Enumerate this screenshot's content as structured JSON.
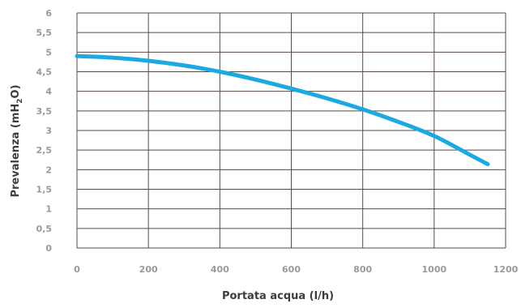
{
  "chart_data": {
    "type": "line",
    "title": "",
    "xlabel": "Portata acqua (l/h)",
    "ylabel": "Prevalenza (mH",
    "ylabel_sub": "2",
    "ylabel_end": "O)",
    "xlim": [
      0,
      1200
    ],
    "ylim": [
      0,
      6
    ],
    "x_ticks": [
      "0",
      "200",
      "400",
      "600",
      "800",
      "1000",
      "1200"
    ],
    "y_ticks": [
      "0",
      "0,5",
      "1",
      "1,5",
      "2",
      "2,5",
      "3",
      "3,5",
      "4",
      "4,5",
      "5",
      "5,5",
      "6"
    ],
    "grid": true,
    "series": [
      {
        "color": "#1ba9e1",
        "x": [
          0,
          100,
          200,
          300,
          400,
          500,
          600,
          700,
          800,
          900,
          1000,
          1100,
          1150
        ],
        "y": [
          4.9,
          4.86,
          4.78,
          4.66,
          4.5,
          4.3,
          4.07,
          3.82,
          3.54,
          3.22,
          2.86,
          2.38,
          2.14
        ]
      }
    ]
  }
}
